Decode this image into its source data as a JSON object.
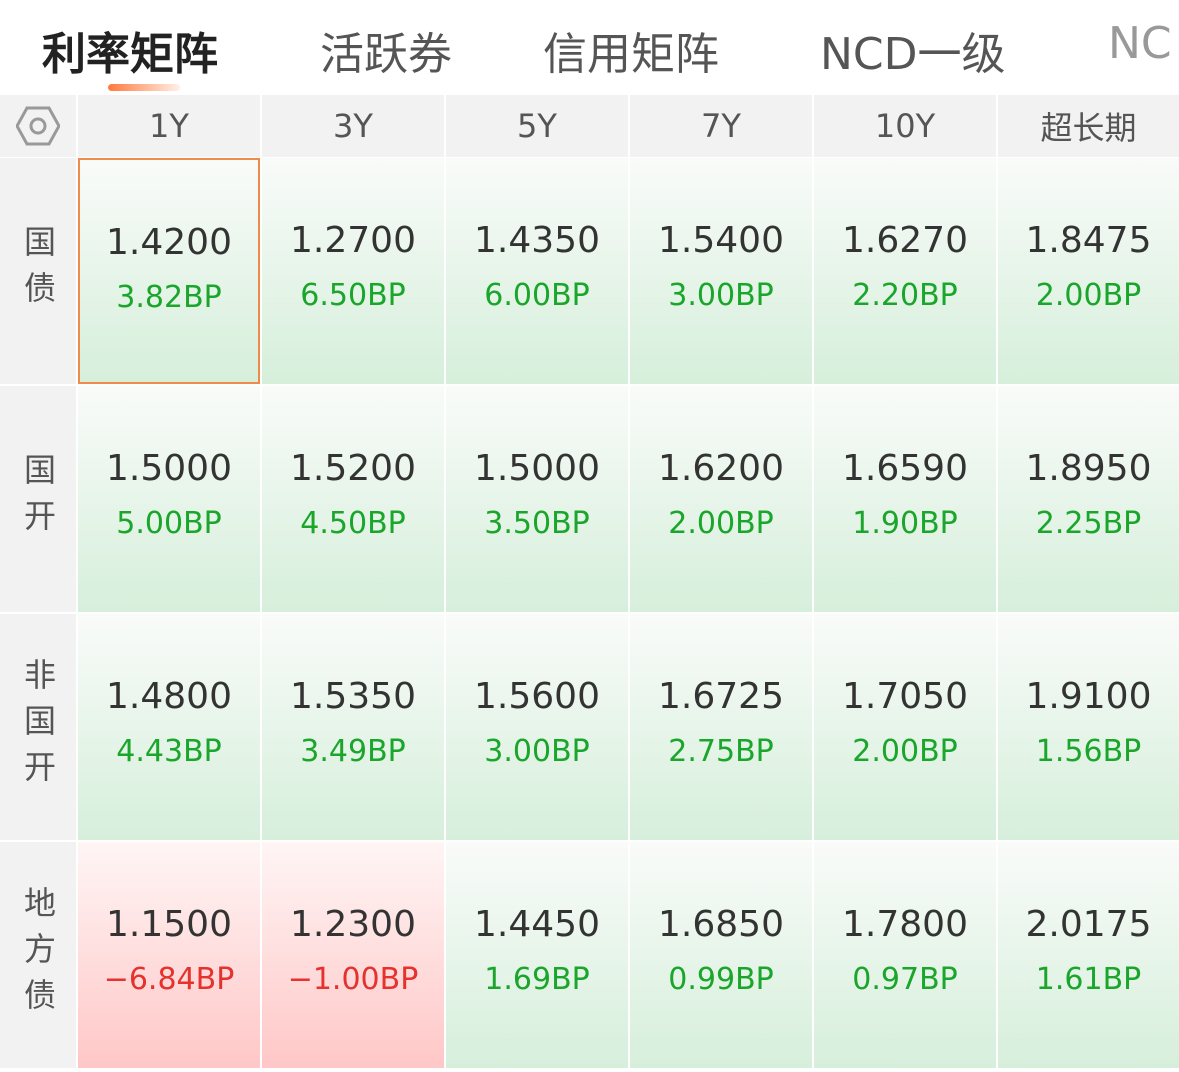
{
  "tabs": [
    "利率矩阵",
    "活跃券",
    "信用矩阵",
    "NCD一级",
    "NC"
  ],
  "header": {
    "columns": [
      "1Y",
      "3Y",
      "5Y",
      "7Y",
      "10Y",
      "超长期"
    ]
  },
  "table": {
    "rows": [
      {
        "label": "国债",
        "cells": [
          {
            "value": "1.4200",
            "change": "3.82BP",
            "color": "#1aa52b"
          },
          {
            "value": "1.2700",
            "change": "6.50BP",
            "color": "#1aa52b"
          },
          {
            "value": "1.4350",
            "change": "6.00BP",
            "color": "#1aa52b"
          },
          {
            "value": "1.5400",
            "change": "3.00BP",
            "color": "#1aa52b"
          },
          {
            "value": "1.6270",
            "change": "2.20BP",
            "color": "#1aa52b"
          },
          {
            "value": "1.8475",
            "change": "2.00BP",
            "color": "#1aa52b"
          }
        ]
      },
      {
        "label": "国开",
        "cells": [
          {
            "value": "1.5000",
            "change": "5.00BP",
            "color": "#1aa52b"
          },
          {
            "value": "1.5200",
            "change": "4.50BP",
            "color": "#1aa52b"
          },
          {
            "value": "1.5000",
            "change": "3.50BP",
            "color": "#1aa52b"
          },
          {
            "value": "1.6200",
            "change": "2.00BP",
            "color": "#1aa52b"
          },
          {
            "value": "1.6590",
            "change": "1.90BP",
            "color": "#1aa52b"
          },
          {
            "value": "1.8950",
            "change": "2.25BP",
            "color": "#1aa52b"
          }
        ]
      },
      {
        "label": "非国开",
        "cells": [
          {
            "value": "1.4800",
            "change": "4.43BP",
            "color": "#1aa52b"
          },
          {
            "value": "1.5350",
            "change": "3.49BP",
            "color": "#1aa52b"
          },
          {
            "value": "1.5600",
            "change": "3.00BP",
            "color": "#1aa52b"
          },
          {
            "value": "1.6725",
            "change": "2.75BP",
            "color": "#1aa52b"
          },
          {
            "value": "1.7050",
            "change": "2.00BP",
            "color": "#1aa52b"
          },
          {
            "value": "1.9100",
            "change": "1.56BP",
            "color": "#1aa52b"
          }
        ]
      },
      {
        "label": "地方债",
        "cells": [
          {
            "value": "1.1500",
            "change": "−6.84BP",
            "color": "#e5322d"
          },
          {
            "value": "1.2300",
            "change": "−1.00BP",
            "color": "#e5322d"
          },
          {
            "value": "1.4450",
            "change": "1.69BP",
            "color": "#1aa52b"
          },
          {
            "value": "1.6850",
            "change": "0.99BP",
            "color": "#1aa52b"
          },
          {
            "value": "1.7800",
            "change": "0.97BP",
            "color": "#1aa52b"
          },
          {
            "value": "2.0175",
            "change": "1.61BP",
            "color": "#1aa52b"
          }
        ]
      }
    ]
  }
}
